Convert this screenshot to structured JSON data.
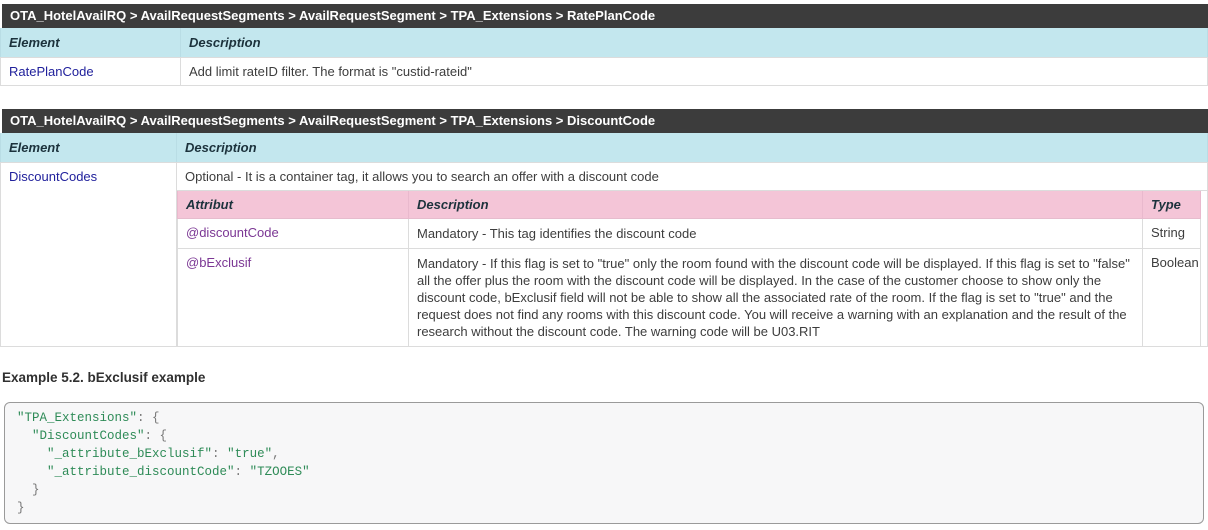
{
  "colors": {
    "darkBg": "#3c3c3c",
    "cyanBg": "#c3e7ee",
    "pinkBg": "#f4c5d7",
    "linkBlue": "#21219c",
    "linkPurple": "#7b3794",
    "codeString": "#2e8b57",
    "codePlain": "#777777"
  },
  "table1": {
    "breadcrumb": "OTA_HotelAvailRQ > AvailRequestSegments > AvailRequestSegment > TPA_Extensions > RatePlanCode",
    "headers": {
      "element": "Element",
      "description": "Description"
    },
    "rows": [
      {
        "element": "RatePlanCode",
        "description": "Add limit rateID filter. The format is \"custid-rateid\""
      }
    ]
  },
  "table2": {
    "breadcrumb": "OTA_HotelAvailRQ > AvailRequestSegments > AvailRequestSegment > TPA_Extensions > DiscountCode",
    "headers": {
      "element": "Element",
      "description": "Description"
    },
    "row": {
      "element": "DiscountCodes",
      "description": "Optional - It is a container tag, it allows you to search an offer with a discount code"
    },
    "attributes": {
      "headers": {
        "attribut": "Attribut",
        "description": "Description",
        "type": "Type"
      },
      "rows": [
        {
          "attribut": "@discountCode",
          "description": "Mandatory - This tag identifies the discount code",
          "type": "String"
        },
        {
          "attribut": "@bExclusif",
          "description": "Mandatory - If this flag is set to \"true\" only the room found with the discount code will be displayed. If this flag is set to \"false\" all the offer plus the room with the discount code will be displayed. In the case of the customer choose to show only the discount code, bExclusif field will not be able to show all the associated rate of the room. If the flag is set to \"true\" and the request does not find any rooms with this discount code. You will receive a warning with an explanation and the result of the research without the discount code. The warning code will be U03.RIT",
          "type": "Boolean"
        }
      ]
    }
  },
  "example": {
    "title": "Example 5.2. bExclusif example",
    "code": {
      "lines": [
        [
          [
            "s",
            "\"TPA_Extensions\""
          ],
          [
            "p",
            ": {"
          ]
        ],
        [
          [
            "p",
            "  "
          ],
          [
            "s",
            "\"DiscountCodes\""
          ],
          [
            "p",
            ": {"
          ]
        ],
        [
          [
            "p",
            "    "
          ],
          [
            "s",
            "\"_attribute_bExclusif\""
          ],
          [
            "p",
            ": "
          ],
          [
            "s",
            "\"true\""
          ],
          [
            "p",
            ","
          ]
        ],
        [
          [
            "p",
            "    "
          ],
          [
            "s",
            "\"_attribute_discountCode\""
          ],
          [
            "p",
            ": "
          ],
          [
            "s",
            "\"TZOOES\""
          ]
        ],
        [
          [
            "p",
            "  }"
          ]
        ],
        [
          [
            "p",
            "}"
          ]
        ]
      ]
    }
  }
}
